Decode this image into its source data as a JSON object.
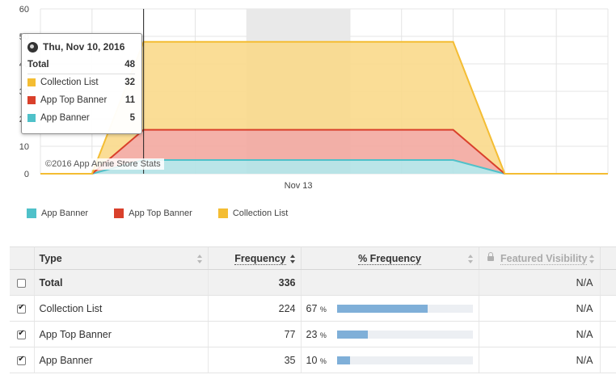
{
  "chart_data": {
    "type": "area",
    "stacked": true,
    "x_tick_labels": [
      {
        "label": "Nov 13",
        "at": 13
      }
    ],
    "x_range": [
      8,
      19
    ],
    "y_ticks": [
      0,
      10,
      20,
      30,
      40,
      50,
      60
    ],
    "ylim": [
      0,
      60
    ],
    "grid": true,
    "highlighted_x": 10,
    "shaded_band": [
      12,
      14
    ],
    "x": [
      8,
      9,
      10,
      11,
      12,
      13,
      14,
      15,
      16,
      17,
      18,
      19
    ],
    "series": [
      {
        "name": "App Banner",
        "color": "#4fc1c9",
        "fill": "#b3e2e6",
        "values": [
          0,
          0,
          5,
          5,
          5,
          5,
          5,
          5,
          5,
          0,
          0,
          0
        ]
      },
      {
        "name": "App Top Banner",
        "color": "#d9402b",
        "fill": "#f3a9a0",
        "values": [
          0,
          0,
          11,
          11,
          11,
          11,
          11,
          11,
          11,
          0,
          0,
          0
        ]
      },
      {
        "name": "Collection List",
        "color": "#f4bd33",
        "fill": "#f9d98b",
        "values": [
          0,
          0,
          32,
          32,
          32,
          32,
          32,
          32,
          32,
          0,
          0,
          0
        ]
      }
    ],
    "legend_position": "bottom-left"
  },
  "tooltip": {
    "date": "Thu, Nov 10, 2016",
    "total_label": "Total",
    "total_value": "48",
    "rows": [
      {
        "label": "Collection List",
        "value": "32",
        "color": "#f4bd33"
      },
      {
        "label": "App Top Banner",
        "value": "11",
        "color": "#d9402b"
      },
      {
        "label": "App Banner",
        "value": "5",
        "color": "#4fc1c9"
      }
    ]
  },
  "credit": "©2016 App Annie Store Stats",
  "legend": [
    {
      "label": "App Banner",
      "color": "#4fc1c9"
    },
    {
      "label": "App Top Banner",
      "color": "#d9402b"
    },
    {
      "label": "Collection List",
      "color": "#f4bd33"
    }
  ],
  "table": {
    "headers": {
      "type": "Type",
      "frequency": "Frequency",
      "pct_frequency": "% Frequency",
      "featured_visibility": "Featured Visibility"
    },
    "total": {
      "label": "Total",
      "frequency": "336",
      "featured": "N/A"
    },
    "rows": [
      {
        "label": "Collection List",
        "frequency": "224",
        "pct": "67",
        "pct_unit": "%",
        "pct_value": 0.67,
        "featured": "N/A"
      },
      {
        "label": "App Top Banner",
        "frequency": "77",
        "pct": "23",
        "pct_unit": "%",
        "pct_value": 0.23,
        "featured": "N/A"
      },
      {
        "label": "App Banner",
        "frequency": "35",
        "pct": "10",
        "pct_unit": "%",
        "pct_value": 0.1,
        "featured": "N/A"
      }
    ]
  }
}
